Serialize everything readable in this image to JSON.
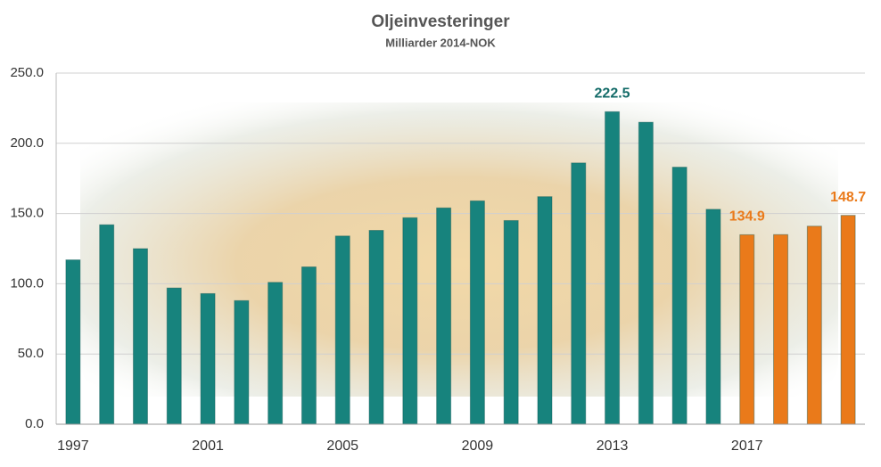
{
  "chart_data": {
    "type": "bar",
    "title": "Oljeinvesteringer",
    "subtitle": "Milliarder 2014-NOK",
    "categories": [
      "1997",
      null,
      null,
      null,
      "2001",
      null,
      null,
      null,
      "2005",
      null,
      null,
      null,
      "2009",
      null,
      null,
      null,
      "2013",
      null,
      null,
      null,
      "2017",
      null,
      null,
      null
    ],
    "values": [
      117,
      142,
      125,
      97,
      93,
      88,
      101,
      112,
      134,
      138,
      147,
      154,
      159,
      145,
      162,
      186,
      222.5,
      215,
      183,
      153,
      134.9,
      135,
      141,
      148.7
    ],
    "value_labels": [
      null,
      null,
      null,
      null,
      null,
      null,
      null,
      null,
      null,
      null,
      null,
      null,
      null,
      null,
      null,
      null,
      "222.5",
      null,
      null,
      null,
      "134.9",
      null,
      null,
      "148.7"
    ],
    "colors": [
      "#17837d",
      "#17837d",
      "#17837d",
      "#17837d",
      "#17837d",
      "#17837d",
      "#17837d",
      "#17837d",
      "#17837d",
      "#17837d",
      "#17837d",
      "#17837d",
      "#17837d",
      "#17837d",
      "#17837d",
      "#17837d",
      "#17837d",
      "#17837d",
      "#17837d",
      "#17837d",
      "#ea7a1a",
      "#ea7a1a",
      "#ea7a1a",
      "#ea7a1a"
    ],
    "ylim": [
      0,
      250
    ],
    "yticks": [
      {
        "value": 0,
        "label": "0.0"
      },
      {
        "value": 50,
        "label": "50.0"
      },
      {
        "value": 100,
        "label": "100.0"
      },
      {
        "value": 150,
        "label": "150.0"
      },
      {
        "value": 200,
        "label": "200.0"
      },
      {
        "value": 250,
        "label": "250.0"
      }
    ],
    "grid": true
  }
}
